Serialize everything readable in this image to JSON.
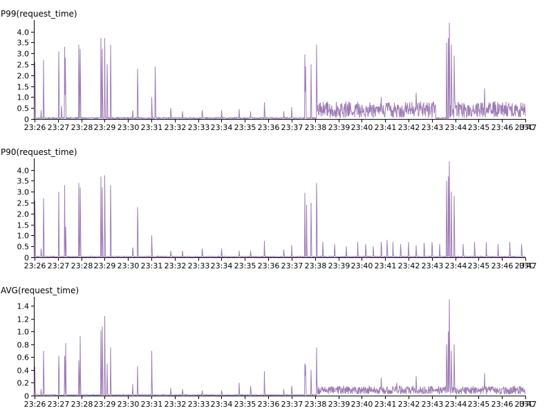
{
  "colors": {
    "series": "#9e7bb5",
    "axis": "#000000",
    "background": "#ffffff"
  },
  "chart_data": [
    {
      "type": "line",
      "title": "P99(request_time)",
      "ylim": [
        0,
        4.4
      ],
      "yticks": [
        "0",
        "0.5",
        "1.0",
        "1.5",
        "2.0",
        "2.5",
        "3.0",
        "3.5",
        "4.0"
      ],
      "ytick_values": [
        0,
        0.5,
        1.0,
        1.5,
        2.0,
        2.5,
        3.0,
        3.5,
        4.0
      ],
      "xticks": [
        "23:26",
        "23:27",
        "23:28",
        "23:29",
        "23:30",
        "23:31",
        "23:32",
        "23:33",
        "23:34",
        "23:35",
        "23:36",
        "23:37",
        "23:38",
        "23:39",
        "23:40",
        "23:41",
        "23:42",
        "23:43",
        "23:44",
        "23:45",
        "23:46",
        "23:47"
      ],
      "xunit_label": "UTC",
      "grid": false,
      "series": [
        {
          "baseline": 0.04,
          "dense_segment": {
            "from": "23:38:04",
            "to": "23:48:00",
            "min": 0.05,
            "max": 0.8,
            "gap": [
              "23:43:10",
              "23:43:45"
            ]
          },
          "spikes": [
            [
              "23:26:01",
              2.6
            ],
            [
              "23:26:17",
              0.4
            ],
            [
              "23:26:23",
              2.7
            ],
            [
              "23:27:02",
              3.1
            ],
            [
              "23:27:09",
              0.6
            ],
            [
              "23:27:17",
              3.3
            ],
            [
              "23:27:19",
              2.8
            ],
            [
              "23:27:54",
              3.4
            ],
            [
              "23:27:57",
              3.2
            ],
            [
              "23:28:50",
              3.7
            ],
            [
              "23:28:54",
              3.2
            ],
            [
              "23:29:00",
              3.7
            ],
            [
              "23:29:06",
              2.5
            ],
            [
              "23:29:15",
              3.4
            ],
            [
              "23:30:12",
              0.4
            ],
            [
              "23:30:24",
              2.3
            ],
            [
              "23:31:01",
              1.0
            ],
            [
              "23:31:10",
              2.4
            ],
            [
              "23:31:50",
              0.5
            ],
            [
              "23:32:20",
              0.35
            ],
            [
              "23:33:10",
              0.4
            ],
            [
              "23:34:00",
              0.4
            ],
            [
              "23:34:45",
              0.45
            ],
            [
              "23:35:15",
              0.35
            ],
            [
              "23:35:50",
              0.75
            ],
            [
              "23:36:40",
              0.35
            ],
            [
              "23:37:00",
              0.55
            ],
            [
              "23:37:34",
              2.95
            ],
            [
              "23:37:36",
              2.4
            ],
            [
              "23:37:50",
              2.5
            ],
            [
              "23:38:04",
              3.4
            ],
            [
              "23:40:50",
              1.0
            ],
            [
              "23:42:20",
              1.2
            ],
            [
              "23:43:38",
              3.5
            ],
            [
              "23:43:42",
              3.7
            ],
            [
              "23:43:45",
              4.4
            ],
            [
              "23:43:50",
              3.4
            ],
            [
              "23:43:57",
              2.9
            ],
            [
              "23:45:15",
              1.4
            ]
          ]
        }
      ]
    },
    {
      "type": "line",
      "title": "P90(request_time)",
      "ylim": [
        0,
        4.4
      ],
      "yticks": [
        "0",
        "0.5",
        "1.0",
        "1.5",
        "2.0",
        "2.5",
        "3.0",
        "3.5",
        "4.0"
      ],
      "ytick_values": [
        0,
        0.5,
        1.0,
        1.5,
        2.0,
        2.5,
        3.0,
        3.5,
        4.0
      ],
      "xticks": [
        "23:26",
        "23:27",
        "23:28",
        "23:29",
        "23:30",
        "23:31",
        "23:32",
        "23:33",
        "23:34",
        "23:35",
        "23:36",
        "23:37",
        "23:38",
        "23:39",
        "23:40",
        "23:41",
        "23:42",
        "23:43",
        "23:44",
        "23:45",
        "23:46",
        "23:47"
      ],
      "xunit_label": "UTC",
      "grid": false,
      "series": [
        {
          "baseline": 0.03,
          "dense_segment": null,
          "spikes": [
            [
              "23:26:01",
              2.6
            ],
            [
              "23:26:17",
              0.4
            ],
            [
              "23:26:23",
              2.7
            ],
            [
              "23:27:02",
              3.0
            ],
            [
              "23:27:17",
              3.3
            ],
            [
              "23:27:20",
              1.4
            ],
            [
              "23:27:54",
              3.4
            ],
            [
              "23:27:57",
              3.2
            ],
            [
              "23:28:50",
              3.7
            ],
            [
              "23:28:54",
              3.2
            ],
            [
              "23:29:00",
              3.75
            ],
            [
              "23:29:15",
              3.3
            ],
            [
              "23:30:12",
              0.45
            ],
            [
              "23:30:24",
              2.3
            ],
            [
              "23:31:01",
              1.0
            ],
            [
              "23:31:50",
              0.3
            ],
            [
              "23:32:20",
              0.3
            ],
            [
              "23:33:10",
              0.4
            ],
            [
              "23:34:00",
              0.4
            ],
            [
              "23:34:45",
              0.3
            ],
            [
              "23:35:15",
              0.3
            ],
            [
              "23:35:50",
              0.75
            ],
            [
              "23:36:40",
              0.35
            ],
            [
              "23:37:00",
              0.55
            ],
            [
              "23:37:34",
              2.95
            ],
            [
              "23:37:38",
              2.4
            ],
            [
              "23:37:50",
              2.5
            ],
            [
              "23:38:04",
              3.4
            ],
            [
              "23:38:20",
              0.7
            ],
            [
              "23:38:50",
              0.6
            ],
            [
              "23:39:20",
              0.5
            ],
            [
              "23:39:50",
              0.7
            ],
            [
              "23:40:10",
              0.6
            ],
            [
              "23:40:30",
              0.5
            ],
            [
              "23:40:50",
              0.7
            ],
            [
              "23:41:05",
              0.8
            ],
            [
              "23:41:20",
              0.7
            ],
            [
              "23:41:40",
              0.6
            ],
            [
              "23:42:00",
              0.7
            ],
            [
              "23:42:20",
              0.55
            ],
            [
              "23:42:40",
              0.65
            ],
            [
              "23:43:00",
              0.7
            ],
            [
              "23:43:20",
              0.6
            ],
            [
              "23:43:38",
              3.5
            ],
            [
              "23:43:42",
              3.7
            ],
            [
              "23:43:45",
              4.4
            ],
            [
              "23:43:50",
              3.0
            ],
            [
              "23:43:57",
              2.8
            ],
            [
              "23:44:20",
              0.6
            ],
            [
              "23:44:50",
              0.7
            ],
            [
              "23:45:20",
              0.7
            ],
            [
              "23:45:50",
              0.6
            ],
            [
              "23:46:20",
              0.7
            ],
            [
              "23:46:50",
              0.6
            ],
            [
              "23:47:20",
              0.7
            ]
          ]
        }
      ]
    },
    {
      "type": "line",
      "title": "AVG(request_time)",
      "ylim": [
        0,
        1.5
      ],
      "yticks": [
        "0",
        "0.2",
        "0.4",
        "0.6",
        "0.8",
        "1.0",
        "1.2",
        "1.4"
      ],
      "ytick_values": [
        0,
        0.2,
        0.4,
        0.6,
        0.8,
        1.0,
        1.2,
        1.4
      ],
      "xticks": [
        "23:26",
        "23:27",
        "23:28",
        "23:29",
        "23:30",
        "23:31",
        "23:32",
        "23:33",
        "23:34",
        "23:35",
        "23:36",
        "23:37",
        "23:38",
        "23:39",
        "23:40",
        "23:41",
        "23:42",
        "23:43",
        "23:44",
        "23:45",
        "23:46",
        "23:47"
      ],
      "xunit_label": "UTC",
      "grid": false,
      "series": [
        {
          "baseline": 0.01,
          "dense_segment": {
            "from": "23:38:04",
            "to": "23:48:00",
            "min": 0.02,
            "max": 0.15,
            "gap": null
          },
          "spikes": [
            [
              "23:26:01",
              0.45
            ],
            [
              "23:26:17",
              0.1
            ],
            [
              "23:26:23",
              0.7
            ],
            [
              "23:27:02",
              0.62
            ],
            [
              "23:27:17",
              0.62
            ],
            [
              "23:27:20",
              0.82
            ],
            [
              "23:27:54",
              0.55
            ],
            [
              "23:27:57",
              0.93
            ],
            [
              "23:28:50",
              1.02
            ],
            [
              "23:28:54",
              1.08
            ],
            [
              "23:29:00",
              1.24
            ],
            [
              "23:29:06",
              0.5
            ],
            [
              "23:29:15",
              0.75
            ],
            [
              "23:30:12",
              0.18
            ],
            [
              "23:30:24",
              0.46
            ],
            [
              "23:31:01",
              0.7
            ],
            [
              "23:31:50",
              0.12
            ],
            [
              "23:32:20",
              0.1
            ],
            [
              "23:33:10",
              0.08
            ],
            [
              "23:34:00",
              0.08
            ],
            [
              "23:34:45",
              0.2
            ],
            [
              "23:35:15",
              0.15
            ],
            [
              "23:35:50",
              0.38
            ],
            [
              "23:36:40",
              0.1
            ],
            [
              "23:37:00",
              0.15
            ],
            [
              "23:37:34",
              0.5
            ],
            [
              "23:37:36",
              0.48
            ],
            [
              "23:37:50",
              0.4
            ],
            [
              "23:38:04",
              0.75
            ],
            [
              "23:40:50",
              0.28
            ],
            [
              "23:41:30",
              0.2
            ],
            [
              "23:42:20",
              0.3
            ],
            [
              "23:43:38",
              0.8
            ],
            [
              "23:43:42",
              1.0
            ],
            [
              "23:43:45",
              1.52
            ],
            [
              "23:43:50",
              0.7
            ],
            [
              "23:43:57",
              0.8
            ],
            [
              "23:45:15",
              0.35
            ]
          ]
        }
      ]
    }
  ]
}
